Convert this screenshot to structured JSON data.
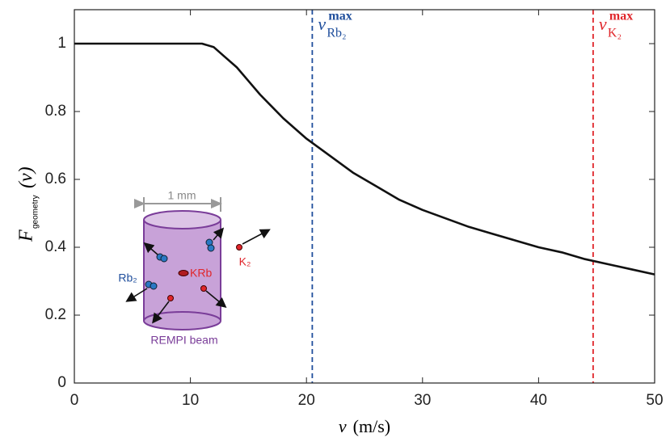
{
  "chart_data": {
    "type": "line",
    "x_label": {
      "symbol": "v",
      "unit": "(m/s)"
    },
    "y_label": {
      "symbol": "F",
      "subscript": "geometry",
      "argument": "(v)"
    },
    "x": [
      0,
      5,
      10,
      11,
      12,
      13,
      14,
      15,
      16,
      17,
      18,
      19,
      20,
      21,
      22,
      23,
      24,
      25,
      26,
      28,
      30,
      32,
      34,
      36,
      38,
      40,
      42,
      44,
      46,
      48,
      50
    ],
    "series": [
      {
        "color": "#111111",
        "values": [
          1,
          1,
          1,
          1,
          0.99,
          0.96,
          0.93,
          0.89,
          0.85,
          0.815,
          0.78,
          0.75,
          0.72,
          0.695,
          0.67,
          0.645,
          0.62,
          0.6,
          0.58,
          0.54,
          0.51,
          0.485,
          0.46,
          0.44,
          0.42,
          0.4,
          0.385,
          0.365,
          0.35,
          0.335,
          0.32
        ]
      }
    ],
    "xlim": [
      0,
      50
    ],
    "ylim": [
      0,
      1.1
    ],
    "xticks": [
      0,
      10,
      20,
      30,
      40,
      50
    ],
    "yticks": [
      0,
      0.2,
      0.4,
      0.6,
      0.8,
      1
    ],
    "vlines": [
      {
        "x": 20.5,
        "color": "#1f4e9c",
        "symbol": "v",
        "sup": "max",
        "sub": "Rb₂"
      },
      {
        "x": 44.7,
        "color": "#e0262b",
        "symbol": "v",
        "sup": "max",
        "sub": "K₂"
      }
    ],
    "inset": {
      "scale": "1 mm",
      "rb2": "Rb₂",
      "krb": "KRb",
      "k2": "K₂",
      "beam": "REMPI beam"
    }
  }
}
